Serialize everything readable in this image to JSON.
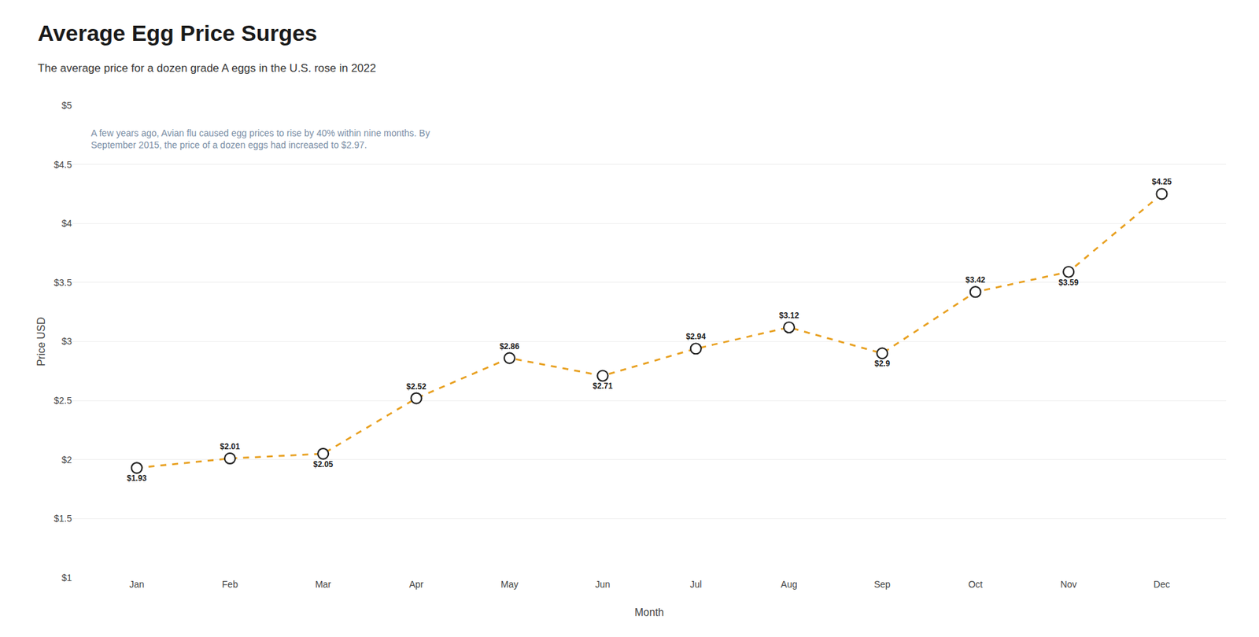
{
  "chart_data": {
    "type": "line",
    "title": "Average Egg Price Surges",
    "subtitle": "The average price for a dozen grade A eggs in the U.S. rose in 2022",
    "annotation": "A few years ago, Avian flu caused egg prices to rise by 40% within nine months. By\nSeptember 2015, the price of a dozen eggs had increased to $2.97.",
    "xlabel": "Month",
    "ylabel": "Price USD",
    "categories": [
      "Jan",
      "Feb",
      "Mar",
      "Apr",
      "May",
      "Jun",
      "Jul",
      "Aug",
      "Sep",
      "Oct",
      "Nov",
      "Dec"
    ],
    "values": [
      1.93,
      2.01,
      2.05,
      2.52,
      2.86,
      2.71,
      2.94,
      3.12,
      2.9,
      3.42,
      3.59,
      4.25
    ],
    "value_labels": [
      "$1.93",
      "$2.01",
      "$2.05",
      "$2.52",
      "$2.86",
      "$2.71",
      "$2.94",
      "$3.12",
      "$2.9",
      "$3.42",
      "$3.59",
      "$4.25"
    ],
    "data_labels": true,
    "color": "#E8A020",
    "marker": "circle",
    "line_style": "dashed",
    "ylim": [
      1.0,
      5.0
    ],
    "yticks": [
      {
        "value": 1.0,
        "label": "$1"
      },
      {
        "value": 1.5,
        "label": "$1.5"
      },
      {
        "value": 2.0,
        "label": "$2"
      },
      {
        "value": 2.5,
        "label": "$2.5"
      },
      {
        "value": 3.0,
        "label": "$3"
      },
      {
        "value": 3.5,
        "label": "$3.5"
      },
      {
        "value": 4.0,
        "label": "$4"
      },
      {
        "value": 4.5,
        "label": "$4.5"
      },
      {
        "value": 5.0,
        "label": "$5"
      }
    ],
    "grid": true
  }
}
